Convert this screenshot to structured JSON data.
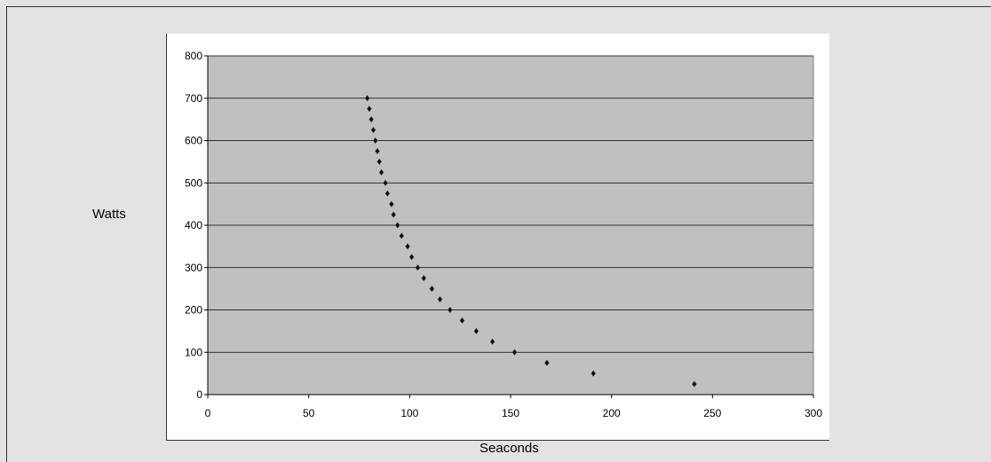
{
  "chart_data": {
    "type": "scatter",
    "title": "",
    "xlabel": "Seaconds",
    "ylabel": "Watts",
    "xlim": [
      0,
      300
    ],
    "ylim": [
      0,
      800
    ],
    "xticks": [
      0,
      50,
      100,
      150,
      200,
      250,
      300
    ],
    "yticks": [
      0,
      100,
      200,
      300,
      400,
      500,
      600,
      700,
      800
    ],
    "grid": "horizontal",
    "legend": "none",
    "plot_background": "#c0c0c0",
    "marker_color": "#000000",
    "points": [
      {
        "x": 79,
        "y": 700
      },
      {
        "x": 80,
        "y": 675
      },
      {
        "x": 81,
        "y": 650
      },
      {
        "x": 82,
        "y": 625
      },
      {
        "x": 83,
        "y": 600
      },
      {
        "x": 84,
        "y": 575
      },
      {
        "x": 85,
        "y": 550
      },
      {
        "x": 86,
        "y": 525
      },
      {
        "x": 88,
        "y": 500
      },
      {
        "x": 89,
        "y": 475
      },
      {
        "x": 91,
        "y": 450
      },
      {
        "x": 92,
        "y": 425
      },
      {
        "x": 94,
        "y": 400
      },
      {
        "x": 96,
        "y": 375
      },
      {
        "x": 99,
        "y": 350
      },
      {
        "x": 101,
        "y": 325
      },
      {
        "x": 104,
        "y": 300
      },
      {
        "x": 107,
        "y": 275
      },
      {
        "x": 111,
        "y": 250
      },
      {
        "x": 115,
        "y": 225
      },
      {
        "x": 120,
        "y": 200
      },
      {
        "x": 126,
        "y": 175
      },
      {
        "x": 133,
        "y": 150
      },
      {
        "x": 141,
        "y": 125
      },
      {
        "x": 152,
        "y": 100
      },
      {
        "x": 168,
        "y": 75
      },
      {
        "x": 191,
        "y": 50
      },
      {
        "x": 241,
        "y": 25
      }
    ]
  }
}
